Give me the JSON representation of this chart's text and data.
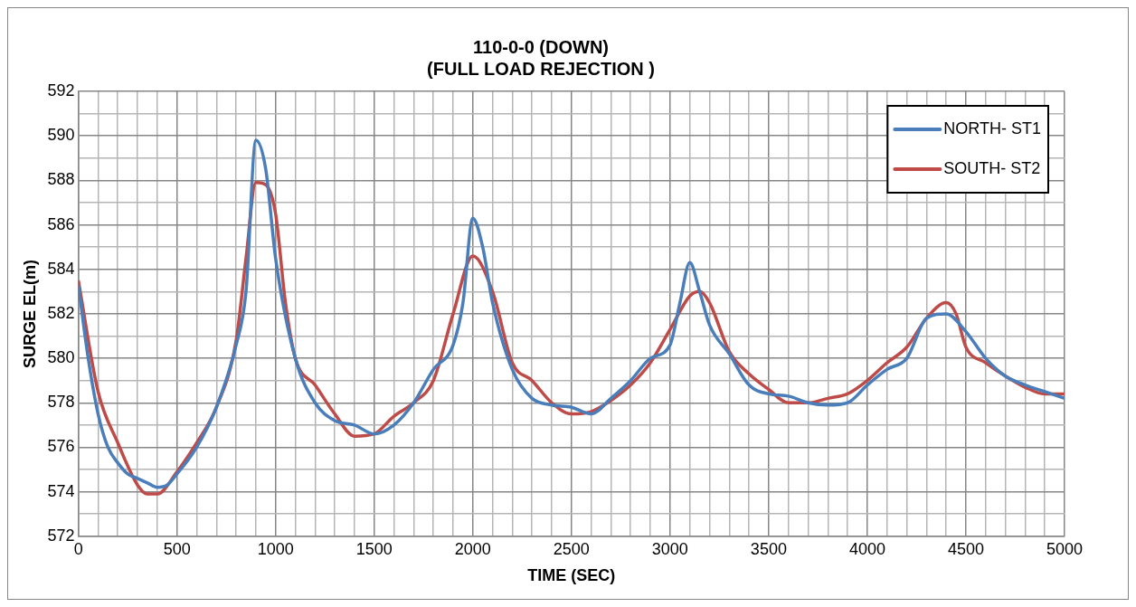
{
  "chart_data": {
    "type": "line",
    "title": "110-0-0 (DOWN)\n(FULL LOAD REJECTION )",
    "xlabel": "TIME (SEC)",
    "ylabel": "SURGE EL(m)",
    "xlim": [
      0,
      5000
    ],
    "ylim": [
      572,
      592
    ],
    "xticks": [
      0,
      {
        "value": 100,
        "label": null
      },
      {
        "value": 200,
        "label": null
      },
      {
        "value": 300,
        "label": null
      },
      {
        "value": 400,
        "label": null
      },
      500,
      {
        "value": 600,
        "label": null
      },
      {
        "value": 700,
        "label": null
      },
      {
        "value": 800,
        "label": null
      },
      {
        "value": 900,
        "label": null
      },
      1000,
      {
        "value": 1100,
        "label": null
      },
      {
        "value": 1200,
        "label": null
      },
      {
        "value": 1300,
        "label": null
      },
      {
        "value": 1400,
        "label": null
      },
      1500,
      {
        "value": 1600,
        "label": null
      },
      {
        "value": 1700,
        "label": null
      },
      {
        "value": 1800,
        "label": null
      },
      {
        "value": 1900,
        "label": null
      },
      2000,
      {
        "value": 2100,
        "label": null
      },
      {
        "value": 2200,
        "label": null
      },
      {
        "value": 2300,
        "label": null
      },
      {
        "value": 2400,
        "label": null
      },
      2500,
      {
        "value": 2600,
        "label": null
      },
      {
        "value": 2700,
        "label": null
      },
      {
        "value": 2800,
        "label": null
      },
      {
        "value": 2900,
        "label": null
      },
      3000,
      {
        "value": 3100,
        "label": null
      },
      {
        "value": 3200,
        "label": null
      },
      {
        "value": 3300,
        "label": null
      },
      {
        "value": 3400,
        "label": null
      },
      3500,
      {
        "value": 3600,
        "label": null
      },
      {
        "value": 3700,
        "label": null
      },
      {
        "value": 3800,
        "label": null
      },
      {
        "value": 3900,
        "label": null
      },
      4000,
      {
        "value": 4100,
        "label": null
      },
      {
        "value": 4200,
        "label": null
      },
      {
        "value": 4300,
        "label": null
      },
      {
        "value": 4400,
        "label": null
      },
      4500,
      {
        "value": 4600,
        "label": null
      },
      {
        "value": 4700,
        "label": null
      },
      {
        "value": 4800,
        "label": null
      },
      {
        "value": 4900,
        "label": null
      },
      5000
    ],
    "yticks": [
      572,
      {
        "value": 573,
        "label": null
      },
      574,
      {
        "value": 575,
        "label": null
      },
      576,
      {
        "value": 577,
        "label": null
      },
      578,
      {
        "value": 579,
        "label": null
      },
      580,
      {
        "value": 581,
        "label": null
      },
      582,
      {
        "value": 583,
        "label": null
      },
      584,
      {
        "value": 585,
        "label": null
      },
      586,
      {
        "value": 587,
        "label": null
      },
      588,
      {
        "value": 589,
        "label": null
      },
      590,
      {
        "value": 591,
        "label": null
      },
      592
    ],
    "grid": true,
    "legend": "top right",
    "marker": "none",
    "line_style": "solid",
    "series": [
      {
        "name": "NORTH- ST1",
        "color": "#4a7ebb",
        "x": [
          0,
          50,
          100,
          150,
          200,
          250,
          300,
          350,
          400,
          450,
          500,
          600,
          700,
          800,
          850,
          900,
          950,
          1000,
          1100,
          1200,
          1300,
          1400,
          1500,
          1600,
          1700,
          1800,
          1900,
          1950,
          2000,
          2050,
          2100,
          2200,
          2300,
          2400,
          2500,
          2600,
          2700,
          2800,
          2900,
          3000,
          3050,
          3100,
          3150,
          3200,
          3300,
          3400,
          3500,
          3600,
          3700,
          3800,
          3900,
          4000,
          4100,
          4200,
          4300,
          4400,
          4500,
          4600,
          4700,
          4800,
          4900,
          5000
        ],
        "values": [
          583.3,
          580,
          577.5,
          576,
          575.3,
          574.8,
          574.6,
          574.4,
          574.2,
          574.3,
          574.8,
          576,
          577.8,
          580.6,
          583,
          589.8,
          588.5,
          584.5,
          580,
          578,
          577.2,
          577,
          576.6,
          577,
          578,
          579.5,
          580.6,
          582.5,
          586.3,
          585,
          582.5,
          579.5,
          578.2,
          577.9,
          577.8,
          577.5,
          578.2,
          579,
          580,
          580.6,
          582.5,
          584.3,
          583,
          581.5,
          580.2,
          578.8,
          578.4,
          578.3,
          578,
          577.9,
          578,
          578.8,
          579.5,
          580,
          581.8,
          582,
          581.2,
          580,
          579.2,
          578.8,
          578.5,
          578.2
        ]
      },
      {
        "name": "SOUTH- ST2",
        "color": "#be4b48",
        "x": [
          0,
          100,
          200,
          300,
          350,
          400,
          500,
          600,
          700,
          800,
          850,
          900,
          950,
          1000,
          1050,
          1100,
          1200,
          1300,
          1400,
          1500,
          1600,
          1700,
          1800,
          1900,
          2000,
          2100,
          2200,
          2300,
          2400,
          2500,
          2600,
          2700,
          2800,
          2900,
          3000,
          3100,
          3150,
          3200,
          3300,
          3400,
          3500,
          3600,
          3700,
          3800,
          3900,
          4000,
          4100,
          4200,
          4300,
          4400,
          4450,
          4500,
          4600,
          4700,
          4800,
          4900,
          5000
        ],
        "values": [
          583.5,
          578.5,
          576.2,
          574.3,
          573.9,
          573.9,
          574.9,
          576.2,
          577.8,
          580.8,
          584.5,
          587.9,
          587.8,
          586.5,
          582.5,
          580,
          578.8,
          577.5,
          576.5,
          576.6,
          577.4,
          578,
          579,
          582,
          584.6,
          583,
          579.8,
          579,
          578,
          577.5,
          577.6,
          578.1,
          578.8,
          579.8,
          581.3,
          582.8,
          583,
          582.5,
          580.3,
          579.3,
          578.6,
          578,
          578,
          578.2,
          578.4,
          579,
          579.8,
          580.5,
          581.8,
          582.5,
          582,
          580.5,
          579.8,
          579.2,
          578.7,
          578.4,
          578.4
        ]
      }
    ]
  }
}
